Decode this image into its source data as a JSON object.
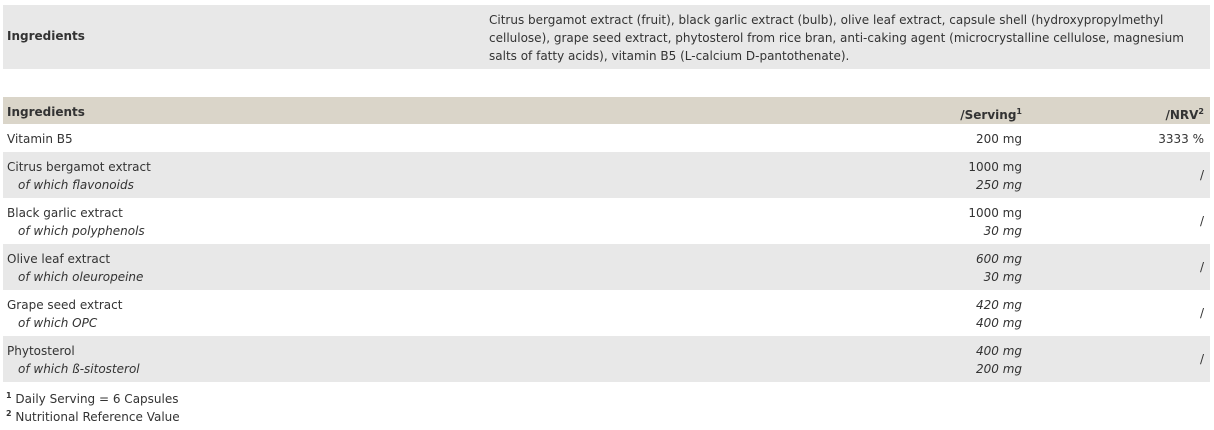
{
  "ingredients_box": {
    "label": "Ingredients",
    "text": "Citrus bergamot extract (fruit), black garlic extract (bulb), olive leaf extract, capsule shell (hydroxypropylmethyl cellulose), grape seed extract, phytosterol from rice bran, anti-caking agent (microcrystalline cellulose, magnesium salts of fatty acids), vitamin B5 (L-calcium D-pantothenate)."
  },
  "table": {
    "headers": {
      "ingredients": "Ingredients",
      "serving": "/Serving",
      "serving_sup": "1",
      "nrv": "/NRV",
      "nrv_sup": "2"
    },
    "rows": [
      {
        "name": "Vitamin B5",
        "serving": "200 mg",
        "nrv": "3333 %"
      },
      {
        "name": "Citrus bergamot extract",
        "sub": "of which flavonoids",
        "serving": "1000 mg",
        "sub_serving": "250 mg",
        "nrv": "/"
      },
      {
        "name": "Black garlic extract",
        "sub": "of which polyphenols",
        "serving": "1000 mg",
        "sub_serving": "30 mg",
        "nrv": "/"
      },
      {
        "name": "Olive leaf extract",
        "sub": "of which oleuropeine",
        "serving": "600 mg",
        "sub_serving": "30 mg",
        "nrv": "/"
      },
      {
        "name": "Grape seed extract",
        "sub": "of which OPC",
        "serving": "420 mg",
        "sub_serving": "400 mg",
        "nrv": "/"
      },
      {
        "name": "Phytosterol",
        "sub": "of which ß-sitosterol",
        "serving": "400 mg",
        "sub_serving": "200 mg",
        "nrv": "/"
      }
    ]
  },
  "footnotes": [
    {
      "mark": "1",
      "text": "Daily Serving = 6 Capsules"
    },
    {
      "mark": "2",
      "text": "Nutritional Reference Value"
    }
  ]
}
